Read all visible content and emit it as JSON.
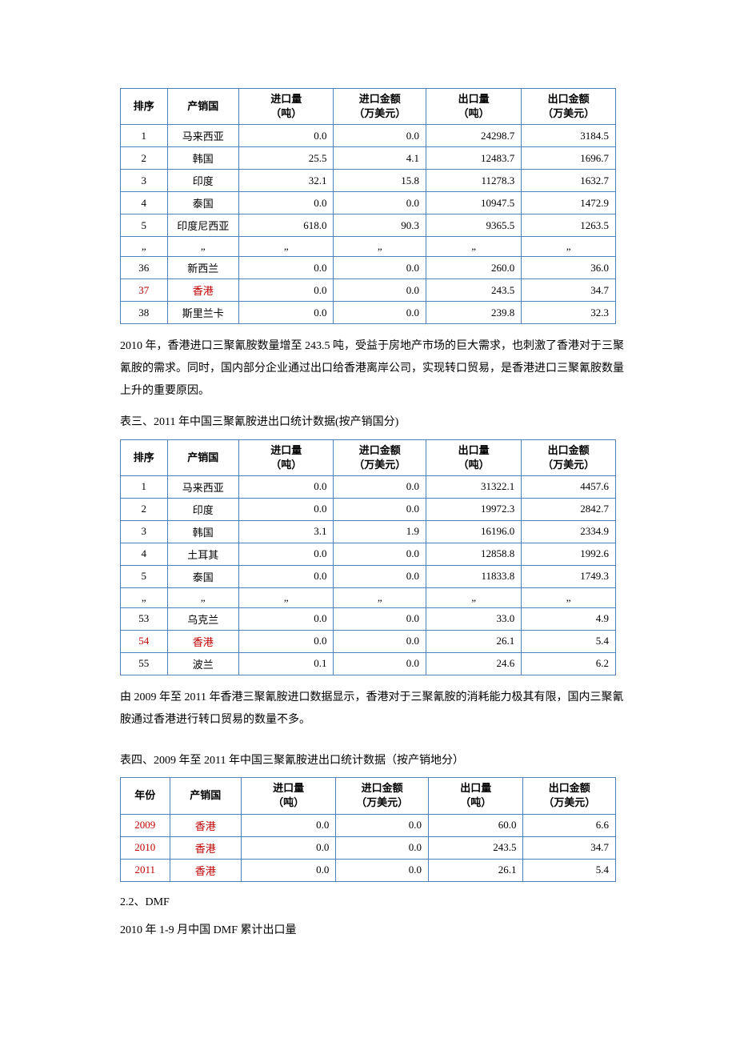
{
  "colors": {
    "table_border": "#4f81bd",
    "highlight_text": "#c00000",
    "text": "#000000",
    "background": "#ffffff"
  },
  "table_shared": {
    "headers": {
      "rank": "排序",
      "year": "年份",
      "country": "产销国",
      "import_qty": "进口量",
      "import_qty_unit": "（吨）",
      "import_val": "进口金额",
      "import_val_unit": "（万美元）",
      "export_qty": "出口量",
      "export_qty_unit": "（吨）",
      "export_val": "出口金额",
      "export_val_unit": "（万美元）"
    },
    "ellipsis": "„"
  },
  "table1": {
    "rows": [
      {
        "rank": "1",
        "country": "马来西亚",
        "iq": "0.0",
        "iv": "0.0",
        "eq": "24298.7",
        "ev": "3184.5",
        "hl": false
      },
      {
        "rank": "2",
        "country": "韩国",
        "iq": "25.5",
        "iv": "4.1",
        "eq": "12483.7",
        "ev": "1696.7",
        "hl": false
      },
      {
        "rank": "3",
        "country": "印度",
        "iq": "32.1",
        "iv": "15.8",
        "eq": "11278.3",
        "ev": "1632.7",
        "hl": false
      },
      {
        "rank": "4",
        "country": "泰国",
        "iq": "0.0",
        "iv": "0.0",
        "eq": "10947.5",
        "ev": "1472.9",
        "hl": false
      },
      {
        "rank": "5",
        "country": "印度尼西亚",
        "iq": "618.0",
        "iv": "90.3",
        "eq": "9365.5",
        "ev": "1263.5",
        "hl": false
      }
    ],
    "rows_after": [
      {
        "rank": "36",
        "country": "新西兰",
        "iq": "0.0",
        "iv": "0.0",
        "eq": "260.0",
        "ev": "36.0",
        "hl": false
      },
      {
        "rank": "37",
        "country": "香港",
        "iq": "0.0",
        "iv": "0.0",
        "eq": "243.5",
        "ev": "34.7",
        "hl": true
      },
      {
        "rank": "38",
        "country": "斯里兰卡",
        "iq": "0.0",
        "iv": "0.0",
        "eq": "239.8",
        "ev": "32.3",
        "hl": false
      }
    ]
  },
  "para1": "2010 年，香港进口三聚氰胺数量增至 243.5 吨，受益于房地产市场的巨大需求，也刺激了香港对于三聚氰胺的需求。同时，国内部分企业通过出口给香港离岸公司，实现转口贸易，是香港进口三聚氰胺数量上升的重要原因。",
  "caption2": "表三、2011 年中国三聚氰胺进出口统计数据(按产销国分)",
  "table2": {
    "rows": [
      {
        "rank": "1",
        "country": "马来西亚",
        "iq": "0.0",
        "iv": "0.0",
        "eq": "31322.1",
        "ev": "4457.6",
        "hl": false
      },
      {
        "rank": "2",
        "country": "印度",
        "iq": "0.0",
        "iv": "0.0",
        "eq": "19972.3",
        "ev": "2842.7",
        "hl": false
      },
      {
        "rank": "3",
        "country": "韩国",
        "iq": "3.1",
        "iv": "1.9",
        "eq": "16196.0",
        "ev": "2334.9",
        "hl": false
      },
      {
        "rank": "4",
        "country": "土耳其",
        "iq": "0.0",
        "iv": "0.0",
        "eq": "12858.8",
        "ev": "1992.6",
        "hl": false
      },
      {
        "rank": "5",
        "country": "泰国",
        "iq": "0.0",
        "iv": "0.0",
        "eq": "11833.8",
        "ev": "1749.3",
        "hl": false
      }
    ],
    "rows_after": [
      {
        "rank": "53",
        "country": "乌克兰",
        "iq": "0.0",
        "iv": "0.0",
        "eq": "33.0",
        "ev": "4.9",
        "hl": false
      },
      {
        "rank": "54",
        "country": "香港",
        "iq": "0.0",
        "iv": "0.0",
        "eq": "26.1",
        "ev": "5.4",
        "hl": true
      },
      {
        "rank": "55",
        "country": "波兰",
        "iq": "0.1",
        "iv": "0.0",
        "eq": "24.6",
        "ev": "6.2",
        "hl": false
      }
    ]
  },
  "para2": "由 2009 年至 2011 年香港三聚氰胺进口数据显示，香港对于三聚氰胺的消耗能力极其有限，国内三聚氰胺通过香港进行转口贸易的数量不多。",
  "caption3": "表四、2009 年至 2011 年中国三聚氰胺进出口统计数据（按产销地分）",
  "table3": {
    "rows": [
      {
        "year": "2009",
        "country": "香港",
        "iq": "0.0",
        "iv": "0.0",
        "eq": "60.0",
        "ev": "6.6",
        "hl": true
      },
      {
        "year": "2010",
        "country": "香港",
        "iq": "0.0",
        "iv": "0.0",
        "eq": "243.5",
        "ev": "34.7",
        "hl": true
      },
      {
        "year": "2011",
        "country": "香港",
        "iq": "0.0",
        "iv": "0.0",
        "eq": "26.1",
        "ev": "5.4",
        "hl": true
      }
    ]
  },
  "section_22": "2.2、DMF",
  "line_22b": "2010 年 1-9 月中国 DMF 累计出口量"
}
